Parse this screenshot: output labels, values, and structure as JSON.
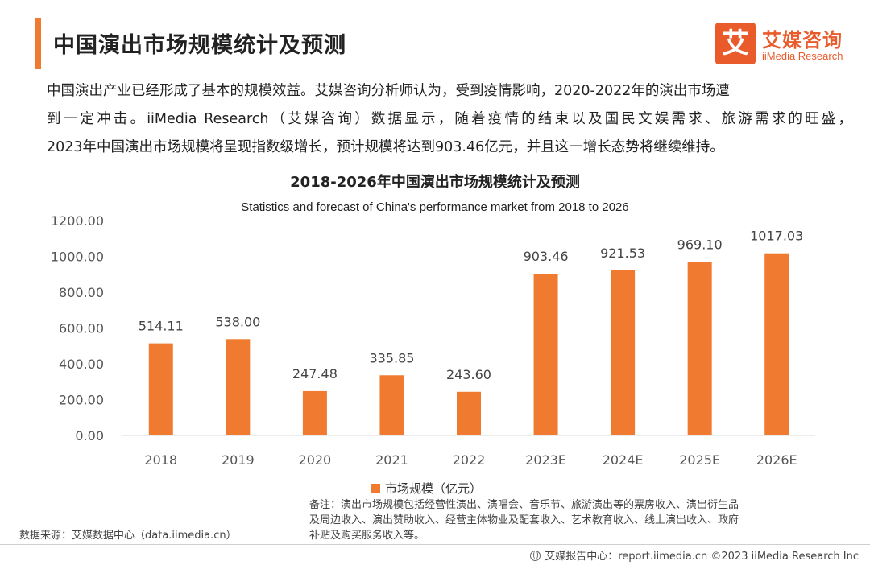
{
  "header": {
    "title": "中国演出市场规模统计及预测",
    "logo_cn": "艾媒咨询",
    "logo_en": "iiMedia Research",
    "logo_mark": "艾"
  },
  "intro": {
    "line1": "中国演出产业已经形成了基本的规模效益。艾媒咨询分析师认为，受到疫情影响，2020-2022年的演出市场遭",
    "line2": "到一定冲击。iiMedia Research（艾媒咨询）数据显示，随着疫情的结束以及国民文娱需求、旅游需求的旺盛，",
    "line3": "2023年中国演出市场规模将呈现指数级增长，预计规模将达到903.46亿元，并且这一增长态势将继续维持。"
  },
  "chart_data": {
    "type": "bar",
    "title": "2018-2026年中国演出市场规模统计及预测",
    "subtitle": "Statistics and forecast of China's performance market from 2018 to 2026",
    "categories": [
      "2018",
      "2019",
      "2020",
      "2021",
      "2022",
      "2023E",
      "2024E",
      "2025E",
      "2026E"
    ],
    "series": [
      {
        "name": "市场规模（亿元）",
        "values": [
          514.11,
          538.0,
          247.48,
          335.85,
          243.6,
          903.46,
          921.53,
          969.1,
          1017.03
        ],
        "labels": [
          "514.11",
          "538.00",
          "247.48",
          "335.85",
          "243.60",
          "903.46",
          "921.53",
          "969.10",
          "1017.03"
        ],
        "color": "#f07a2f"
      }
    ],
    "y_ticks": [
      "0.00",
      "200.00",
      "400.00",
      "600.00",
      "800.00",
      "1000.00",
      "1200.00"
    ],
    "ylim": [
      0,
      1200
    ],
    "grid": false,
    "legend": "bottom"
  },
  "legend": {
    "label": "市场规模（亿元）"
  },
  "note": {
    "line1": "备注：演出市场规模包括经营性演出、演唱会、音乐节、旅游演出等的票房收入、演出衍生品",
    "line2": "及周边收入、演出赞助收入、经营主体物业及配套收入、艺术教育收入、线上演出收入、政府",
    "line3": "补贴及购买服务收入等。"
  },
  "source": "数据来源：艾媒数据中心（data.iimedia.cn）",
  "footer": "艾媒报告中心：report.iimedia.cn ©2023 iiMedia Research Inc"
}
